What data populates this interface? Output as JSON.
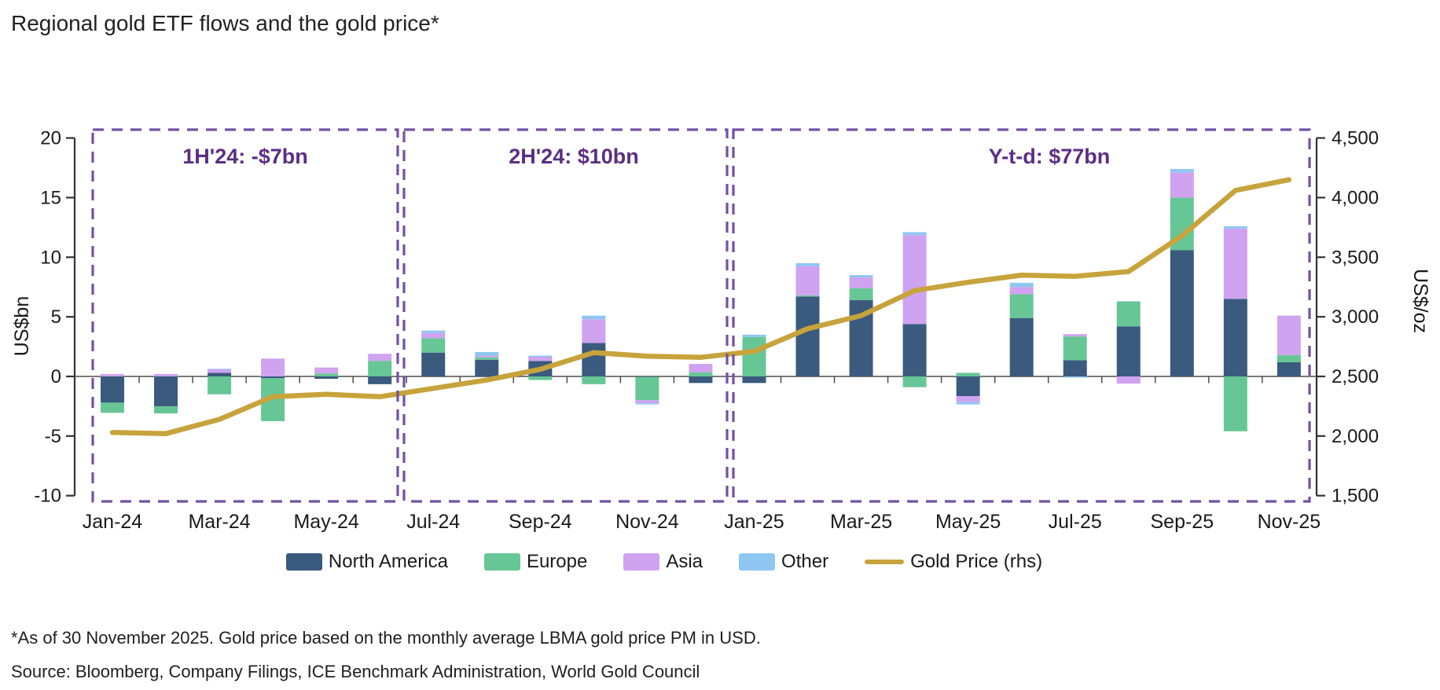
{
  "title": "Regional gold ETF flows and the gold price*",
  "axes": {
    "left_label": "US$bn",
    "right_label": "US$/oz",
    "left_ticks": [
      "20",
      "15",
      "10",
      "5",
      "0",
      "-5",
      "-10"
    ],
    "left_tick_values": [
      20,
      15,
      10,
      5,
      0,
      -5,
      -10
    ],
    "right_ticks": [
      "4,500",
      "4,000",
      "3,500",
      "3,000",
      "2,500",
      "2,000",
      "1,500"
    ],
    "right_tick_values": [
      4500,
      4000,
      3500,
      3000,
      2500,
      2000,
      1500
    ]
  },
  "annotations": [
    {
      "label": "1H'24: -$7bn"
    },
    {
      "label": "2H'24: $10bn"
    },
    {
      "label": "Y-t-d: $77bn"
    }
  ],
  "legend": {
    "items": [
      {
        "label": "North America",
        "color": "#3a5a7e",
        "type": "box"
      },
      {
        "label": "Europe",
        "color": "#67c695",
        "type": "box"
      },
      {
        "label": "Asia",
        "color": "#cfa3f0",
        "type": "box"
      },
      {
        "label": "Other",
        "color": "#8ec7f2",
        "type": "box"
      },
      {
        "label": "Gold Price (rhs)",
        "color": "#c7a33c",
        "type": "line"
      }
    ]
  },
  "footnotes": {
    "line1": "*As of 30 November 2025. Gold price based on the monthly average LBMA gold price PM in USD.",
    "line2": "Source: Bloomberg, Company Filings, ICE Benchmark Administration, World Gold Council"
  },
  "chart_data": {
    "type": "bar",
    "stacked": true,
    "title": "Regional gold ETF flows and the gold price*",
    "ylabel_left": "US$bn",
    "ylabel_right": "US$/oz",
    "ylim_left": [
      -10,
      20
    ],
    "ylim_right": [
      1500,
      4500
    ],
    "grid": false,
    "legend_position": "bottom",
    "categories": [
      "Jan-24",
      "Feb-24",
      "Mar-24",
      "Apr-24",
      "May-24",
      "Jun-24",
      "Jul-24",
      "Aug-24",
      "Sep-24",
      "Oct-24",
      "Nov-24",
      "Dec-24",
      "Jan-25",
      "Feb-25",
      "Mar-25",
      "Apr-25",
      "May-25",
      "Jun-25",
      "Jul-25",
      "Aug-25",
      "Sep-25",
      "Oct-25",
      "Nov-25"
    ],
    "x_tick_labels": [
      "Jan-24",
      "Mar-24",
      "May-24",
      "Jul-24",
      "Sep-24",
      "Nov-24",
      "Jan-25",
      "Mar-25",
      "May-25",
      "Jul-25",
      "Sep-25",
      "Nov-25"
    ],
    "series": [
      {
        "name": "North America",
        "color": "#3a5a7e",
        "values": [
          -2.2,
          -2.5,
          0.3,
          -0.15,
          -0.2,
          -0.65,
          2.0,
          1.4,
          1.3,
          2.8,
          -0.05,
          -0.55,
          -0.55,
          6.7,
          6.4,
          4.4,
          -1.65,
          4.9,
          1.35,
          4.2,
          10.6,
          6.5,
          1.2
        ]
      },
      {
        "name": "Europe",
        "color": "#67c695",
        "values": [
          -0.85,
          -0.6,
          -1.5,
          -3.6,
          0.25,
          1.3,
          1.2,
          0.2,
          -0.3,
          -0.65,
          -1.95,
          0.35,
          3.3,
          0.1,
          1.0,
          -0.9,
          0.3,
          2.0,
          2.0,
          2.1,
          4.4,
          -4.6,
          0.6
        ]
      },
      {
        "name": "Asia",
        "color": "#cfa3f0",
        "values": [
          0.2,
          0.2,
          0.3,
          1.5,
          0.5,
          0.6,
          0.45,
          0.15,
          0.35,
          2.0,
          -0.25,
          0.7,
          0.0,
          2.45,
          0.9,
          7.45,
          -0.5,
          0.6,
          0.2,
          -0.6,
          2.1,
          5.9,
          3.3
        ]
      },
      {
        "name": "Other",
        "color": "#8ec7f2",
        "values": [
          0.0,
          0.0,
          0.05,
          0.0,
          0.0,
          0.0,
          0.2,
          0.3,
          0.1,
          0.3,
          -0.1,
          0.0,
          0.2,
          0.25,
          0.2,
          0.25,
          -0.2,
          0.35,
          -0.1,
          0.0,
          0.3,
          0.2,
          0.0
        ]
      }
    ],
    "line_series": {
      "name": "Gold Price (rhs)",
      "axis": "right",
      "unit": "US$/oz",
      "color": "#c7a33c",
      "values": [
        2030,
        2020,
        2140,
        2330,
        2350,
        2330,
        2400,
        2470,
        2560,
        2700,
        2670,
        2660,
        2710,
        2900,
        3010,
        3220,
        3290,
        3350,
        3340,
        3380,
        3680,
        4060,
        4150
      ]
    },
    "period_totals": [
      {
        "period": "1H'24",
        "value_bn": -7,
        "label": "1H'24: -$7bn",
        "months": [
          "Jan-24",
          "Jun-24"
        ]
      },
      {
        "period": "2H'24",
        "value_bn": 10,
        "label": "2H'24: $10bn",
        "months": [
          "Jul-24",
          "Dec-24"
        ]
      },
      {
        "period": "Y-t-d",
        "value_bn": 77,
        "label": "Y-t-d: $77bn",
        "months": [
          "Jan-25",
          "Nov-25"
        ]
      }
    ]
  }
}
